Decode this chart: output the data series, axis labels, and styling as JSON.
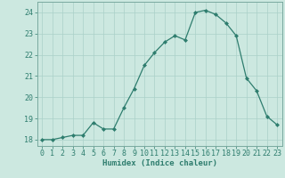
{
  "x": [
    0,
    1,
    2,
    3,
    4,
    5,
    6,
    7,
    8,
    9,
    10,
    11,
    12,
    13,
    14,
    15,
    16,
    17,
    18,
    19,
    20,
    21,
    22,
    23
  ],
  "y": [
    18.0,
    18.0,
    18.1,
    18.2,
    18.2,
    18.8,
    18.5,
    18.5,
    19.5,
    20.4,
    21.5,
    22.1,
    22.6,
    22.9,
    22.7,
    24.0,
    24.1,
    23.9,
    23.5,
    22.9,
    20.9,
    20.3,
    19.1,
    18.7
  ],
  "xlabel": "Humidex (Indice chaleur)",
  "ylim": [
    17.7,
    24.5
  ],
  "xlim": [
    -0.5,
    23.5
  ],
  "yticks": [
    18,
    19,
    20,
    21,
    22,
    23,
    24
  ],
  "xticks": [
    0,
    1,
    2,
    3,
    4,
    5,
    6,
    7,
    8,
    9,
    10,
    11,
    12,
    13,
    14,
    15,
    16,
    17,
    18,
    19,
    20,
    21,
    22,
    23
  ],
  "line_color": "#2e7d6e",
  "marker_color": "#2e7d6e",
  "bg_color": "#cce8e0",
  "grid_color": "#aad0c8",
  "tick_color": "#2e7d6e",
  "label_fontsize": 6.0,
  "xlabel_fontsize": 6.5
}
